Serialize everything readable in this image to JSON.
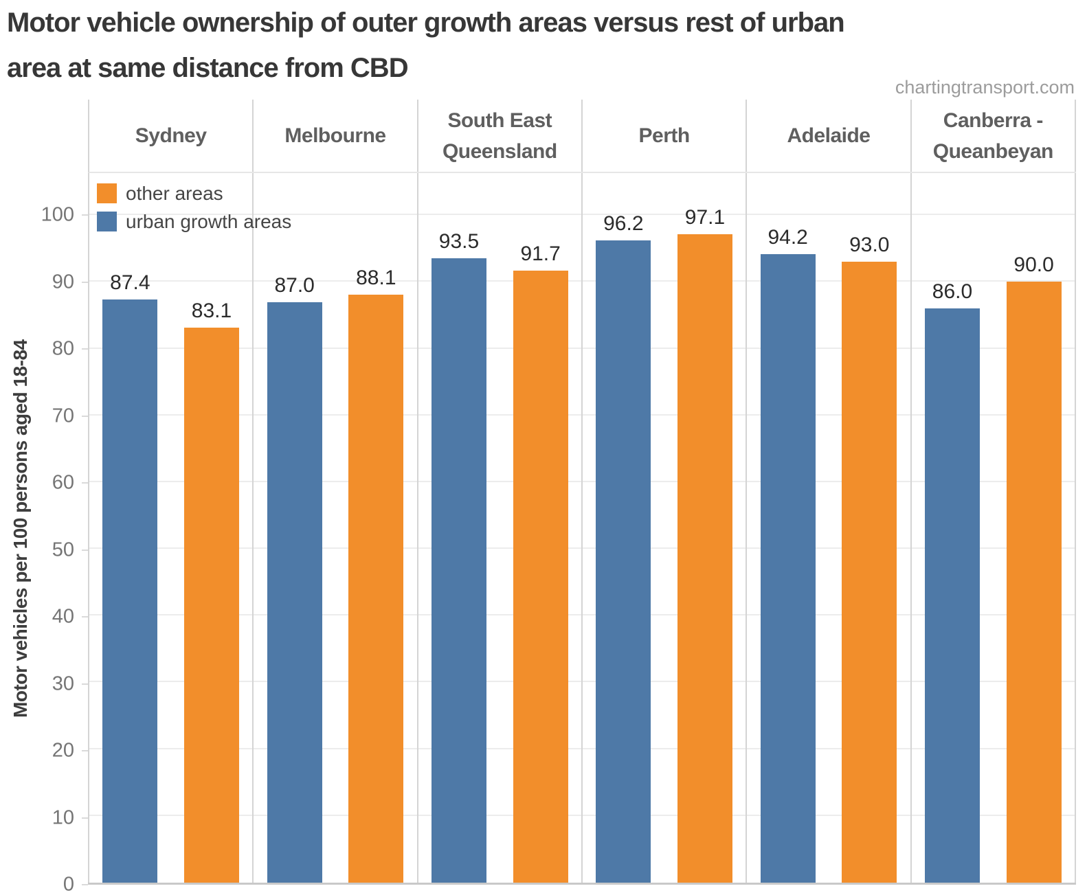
{
  "title": {
    "line1": "Motor vehicle ownership of outer growth areas versus rest of urban",
    "line2": "area at same distance from CBD"
  },
  "watermark": "chartingtransport.com",
  "legend": {
    "items": [
      {
        "label": "other areas",
        "series": "other areas"
      },
      {
        "label": "urban growth areas",
        "series": "urban growth areas"
      }
    ]
  },
  "y_axis": {
    "title": "Motor vehicles per 100 persons aged 18-84",
    "ticks": [
      0,
      10,
      20,
      30,
      40,
      50,
      60,
      70,
      80,
      90,
      100
    ],
    "min": 0,
    "max": 106.3
  },
  "chart_data": {
    "type": "bar",
    "title": "Motor vehicle ownership of outer growth areas versus rest of urban area at same distance from CBD",
    "categories": [
      "Sydney",
      "Melbourne",
      "South East Queensland",
      "Perth",
      "Adelaide",
      "Canberra - Queanbeyan"
    ],
    "series": [
      {
        "name": "urban growth areas",
        "color": "#4e79a7",
        "values": [
          87.4,
          87.0,
          93.5,
          96.2,
          94.2,
          86.0
        ]
      },
      {
        "name": "other areas",
        "color": "#f28e2b",
        "values": [
          83.1,
          88.1,
          91.7,
          97.1,
          93.0,
          90.0
        ]
      }
    ],
    "bar_order": [
      "urban growth areas",
      "other areas"
    ],
    "value_labels": "one_decimal",
    "xlabel": "",
    "ylabel": "Motor vehicles per 100 persons aged 18-84",
    "ylim": [
      0,
      106.3
    ],
    "grid": "horizontal",
    "legend_position": "top-left-inside"
  },
  "colors": {
    "blue": "#4e79a7",
    "orange": "#f28e2b",
    "gridline": "#ececec",
    "panel_divider": "#d4d4d4",
    "axis_line": "#c9c9c9",
    "title_text": "#373737",
    "header_text": "#5f5f5f",
    "tick_text": "#757575",
    "value_label_text": "#2b2b2b",
    "legend_text": "#454545",
    "watermark_text": "#9c9c9c"
  }
}
